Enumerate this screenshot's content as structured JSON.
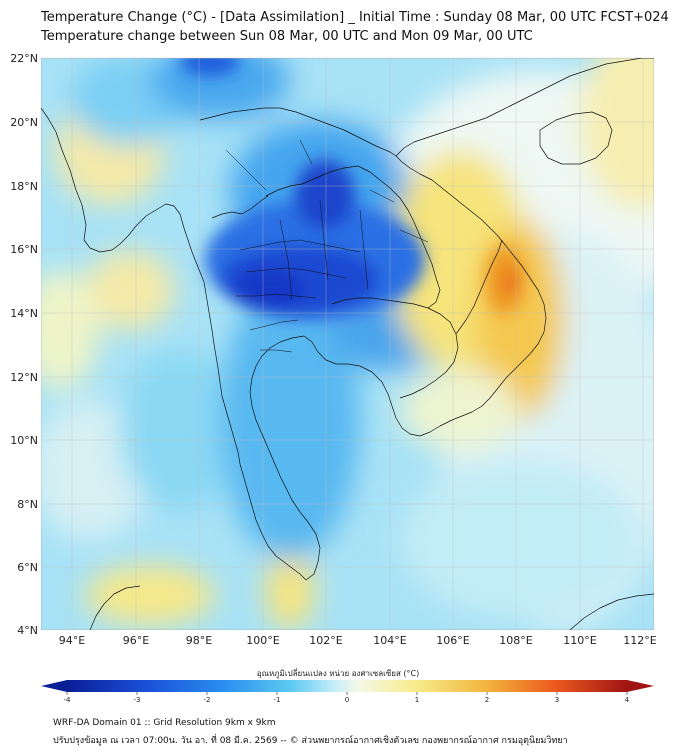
{
  "title": {
    "line1": "Temperature Change (°C) - [Data Assimilation] _ Initial Time : Sunday 08 Mar, 00 UTC FCST+024",
    "line2": "Temperature change between Sun 08 Mar, 00 UTC and Mon 09 Mar, 00 UTC"
  },
  "map": {
    "lat_labels": [
      "22°N",
      "20°N",
      "18°N",
      "16°N",
      "14°N",
      "12°N",
      "10°N",
      "8°N",
      "6°N",
      "4°N"
    ],
    "lon_labels": [
      "94°E",
      "96°E",
      "98°E",
      "100°E",
      "102°E",
      "104°E",
      "106°E",
      "108°E",
      "110°E",
      "112°E"
    ],
    "lat_range": [
      4,
      22
    ],
    "lon_range": [
      93,
      112.5
    ]
  },
  "colorbar": {
    "title": "อุณหภูมิเปลี่ยนแปลง หน่วย องศาเซลเซียส (°C)",
    "ticks": [
      "-4",
      "-3",
      "-2",
      "-1",
      "0",
      "1",
      "2",
      "3",
      "4"
    ],
    "range": [
      -4,
      4
    ]
  },
  "footer": {
    "line1": "WRF-DA Domain 01 :: Grid Resolution 9km x 9km",
    "line2": "ปรับปรุงข้อมูล ณ เวลา 07:00น. วัน อา. ที่ 08 มี.ค. 2569 -- © ส่วนพยากรณ์อากาศเชิงตัวเลข กองพยากรณ์อากาศ กรมอุตุนิยมวิทยา"
  },
  "colors": {
    "cold_max": "#0a1e96",
    "cold": "#1e64e6",
    "cool": "#3cbef0",
    "neutral": "#e6f6fa",
    "warm": "#f5e678",
    "hot": "#f08c1e",
    "hot_max": "#e61e1e"
  }
}
